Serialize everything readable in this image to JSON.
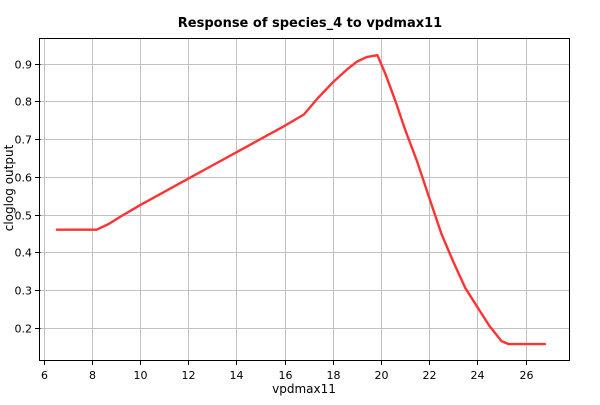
{
  "chart_data": {
    "type": "line",
    "title": "Response of species_4 to vpdmax11",
    "xlabel": "vpdmax11",
    "ylabel": "cloglog output",
    "xlim": [
      5.85,
      27.8
    ],
    "ylim": [
      0.115,
      0.965
    ],
    "x_ticks": [
      6,
      8,
      10,
      12,
      14,
      16,
      18,
      20,
      22,
      24,
      26
    ],
    "y_ticks": [
      0.2,
      0.3,
      0.4,
      0.5,
      0.6,
      0.7,
      0.8,
      0.9
    ],
    "grid": true,
    "series": [
      {
        "color": "#ff3333",
        "x": [
          6.55,
          7.0,
          7.5,
          8.2,
          8.7,
          9.2,
          10.0,
          11.0,
          12.0,
          13.0,
          14.0,
          15.0,
          16.0,
          16.8,
          17.4,
          18.0,
          18.6,
          19.0,
          19.4,
          19.85,
          20.2,
          20.6,
          21.0,
          21.5,
          22.0,
          22.5,
          23.0,
          23.5,
          24.0,
          24.5,
          25.0,
          25.3,
          26.0,
          26.8
        ],
        "values": [
          0.46,
          0.46,
          0.46,
          0.46,
          0.475,
          0.495,
          0.525,
          0.56,
          0.595,
          0.63,
          0.665,
          0.7,
          0.735,
          0.765,
          0.81,
          0.85,
          0.885,
          0.905,
          0.917,
          0.922,
          0.87,
          0.8,
          0.725,
          0.64,
          0.545,
          0.45,
          0.375,
          0.305,
          0.255,
          0.205,
          0.165,
          0.157,
          0.157,
          0.157
        ]
      }
    ]
  }
}
